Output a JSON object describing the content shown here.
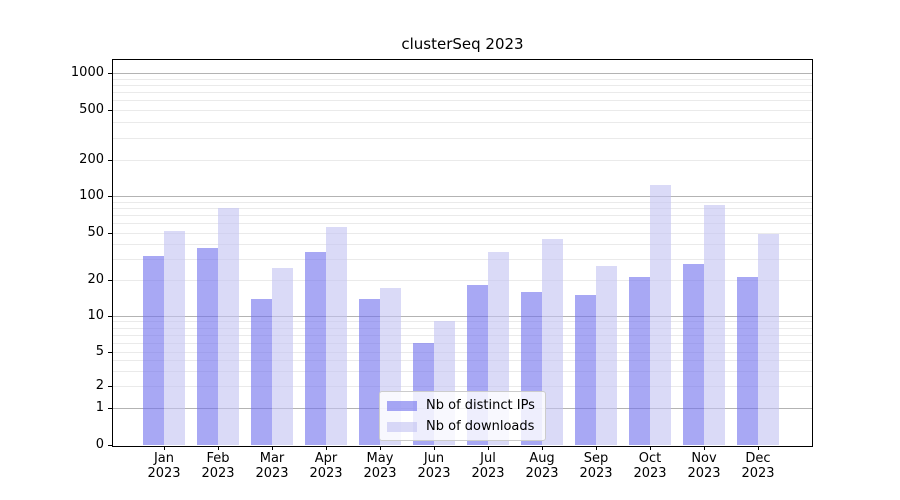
{
  "title": "clusterSeq 2023",
  "legend": {
    "items": [
      {
        "label": "Nb of distinct IPs",
        "series": "distinct_ips"
      },
      {
        "label": "Nb of downloads",
        "series": "downloads"
      }
    ]
  },
  "colors": {
    "distinct_ips_fill": "rgba(110,110,237,0.6)",
    "downloads_fill": "rgba(194,194,242,0.6)",
    "grid_major": "#b3b3b3",
    "grid_minor": "#eaeaea",
    "axis": "#000000",
    "legend_border": "#cccccc"
  },
  "x_axis": {
    "labels": [
      {
        "month": "Jan",
        "year": "2023"
      },
      {
        "month": "Feb",
        "year": "2023"
      },
      {
        "month": "Mar",
        "year": "2023"
      },
      {
        "month": "Apr",
        "year": "2023"
      },
      {
        "month": "May",
        "year": "2023"
      },
      {
        "month": "Jun",
        "year": "2023"
      },
      {
        "month": "Jul",
        "year": "2023"
      },
      {
        "month": "Aug",
        "year": "2023"
      },
      {
        "month": "Sep",
        "year": "2023"
      },
      {
        "month": "Oct",
        "year": "2023"
      },
      {
        "month": "Nov",
        "year": "2023"
      },
      {
        "month": "Dec",
        "year": "2023"
      }
    ]
  },
  "y_axis": {
    "labeled_ticks": [
      0,
      1,
      2,
      5,
      10,
      20,
      50,
      100,
      200,
      500,
      1000
    ],
    "minor_ticks": [
      3,
      4,
      6,
      7,
      8,
      9,
      30,
      40,
      60,
      70,
      80,
      90,
      300,
      400,
      600,
      700,
      800,
      900
    ],
    "decade_ticks": [
      1,
      10,
      100,
      1000
    ],
    "scale": "symlog"
  },
  "chart_data": {
    "type": "bar",
    "title": "clusterSeq 2023",
    "xlabel": "",
    "ylabel": "",
    "yscale": "symlog",
    "ylim": [
      0,
      1360
    ],
    "grid": true,
    "legend_position": "lower center",
    "categories": [
      "Jan 2023",
      "Feb 2023",
      "Mar 2023",
      "Apr 2023",
      "May 2023",
      "Jun 2023",
      "Jul 2023",
      "Aug 2023",
      "Sep 2023",
      "Oct 2023",
      "Nov 2023",
      "Dec 2023"
    ],
    "series": [
      {
        "name": "Nb of distinct IPs",
        "values": [
          32,
          37,
          14,
          34,
          14,
          6,
          18,
          16,
          15,
          21,
          27,
          21
        ]
      },
      {
        "name": "Nb of downloads",
        "values": [
          51,
          80,
          25,
          56,
          17,
          9,
          34,
          44,
          26,
          123,
          85,
          49
        ]
      }
    ]
  }
}
